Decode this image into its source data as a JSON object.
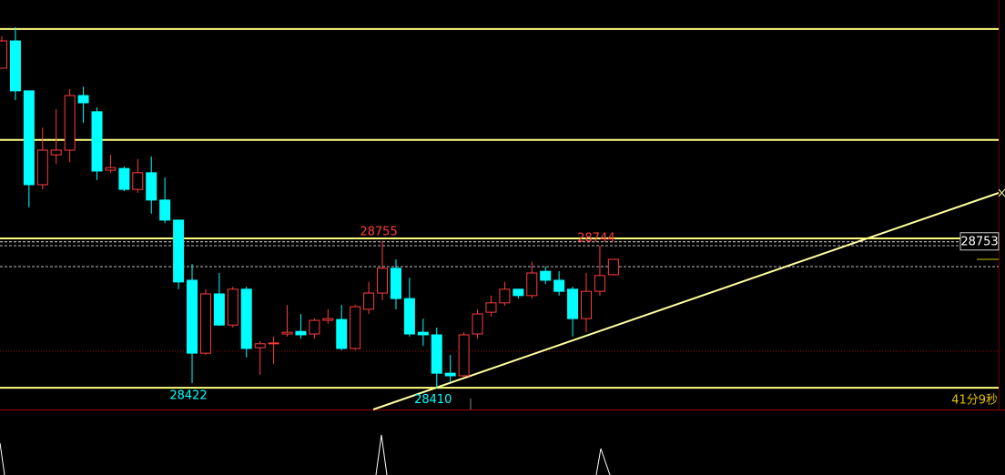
{
  "chart_data": {
    "type": "candlestick",
    "open": [
      29160,
      29224,
      29107,
      28887,
      28957,
      28968,
      29096,
      29058,
      28921,
      28925,
      28876,
      28915,
      28851,
      28804,
      28663,
      28492,
      28631,
      28558,
      28642,
      28505,
      28514,
      28537,
      28543,
      28537,
      28569,
      28571,
      28503,
      28595,
      28633,
      28691,
      28620,
      28541,
      28535,
      28445,
      28439,
      28537,
      28588,
      28610,
      28642,
      28627,
      28684,
      28663,
      28642,
      28573,
      28637,
      28676
    ],
    "high": [
      29235,
      29256,
      29107,
      29021,
      29064,
      29111,
      29117,
      29068,
      28957,
      28930,
      28947,
      28953,
      28904,
      28804,
      28701,
      28642,
      28680,
      28648,
      28648,
      28520,
      28531,
      28605,
      28584,
      28573,
      28595,
      28605,
      28605,
      28659,
      28755,
      28712,
      28669,
      28573,
      28552,
      28488,
      28541,
      28595,
      28627,
      28659,
      28642,
      28706,
      28695,
      28684,
      28648,
      28680,
      28744,
      28712
    ],
    "low": [
      29160,
      29085,
      28834,
      28876,
      28936,
      28940,
      29032,
      28898,
      28915,
      28872,
      28868,
      28819,
      28797,
      28642,
      28422,
      28488,
      28556,
      28552,
      28482,
      28441,
      28467,
      28531,
      28526,
      28526,
      28561,
      28499,
      28499,
      28584,
      28616,
      28595,
      28531,
      28509,
      28410,
      28424,
      28435,
      28526,
      28578,
      28603,
      28620,
      28620,
      28654,
      28627,
      28531,
      28541,
      28627,
      28674
    ],
    "close": [
      29224,
      29107,
      28887,
      28968,
      28968,
      29096,
      29079,
      28919,
      28927,
      28876,
      28915,
      28851,
      28804,
      28659,
      28492,
      28631,
      28558,
      28642,
      28503,
      28514,
      28516,
      28541,
      28535,
      28569,
      28573,
      28503,
      28601,
      28633,
      28691,
      28620,
      28537,
      28535,
      28445,
      28439,
      28535,
      28584,
      28610,
      28642,
      28627,
      28680,
      28663,
      28637,
      28573,
      28637,
      28674,
      28712
    ],
    "up_color": "#ff3c3c",
    "down_color": "#00ffff",
    "ylim": [
      28360,
      29320
    ],
    "levels": [
      29252,
      28992,
      28761,
      28411
    ],
    "level_color": "#ffff80",
    "last_price": 28753,
    "countdown": "41分9秒"
  }
}
